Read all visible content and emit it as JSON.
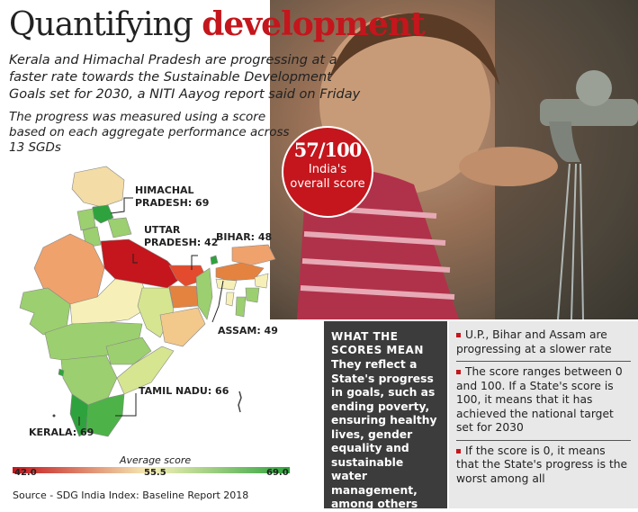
{
  "title": {
    "plain": "Quantifying ",
    "highlight": "development"
  },
  "subtitle": "Kerala and Himachal Pradesh are progressing at a faster rate towards the Sustainable Development Goals set for 2030, a NITI Aayog report said on Friday",
  "subtitle2": "The progress was measured using a score based on each aggregate performance across 13 SGDs",
  "badge": {
    "score": "57/100",
    "label_line1": "India's",
    "label_line2": "overall score"
  },
  "map_labels": {
    "himachal": "HIMACHAL\nPRADESH: 69",
    "uttar": "UTTAR\nPRADESH: 42",
    "bihar": "BIHAR: 48",
    "assam": "ASSAM: 49",
    "tamil": "TAMIL NADU: 66",
    "kerala": "KERALA: 69"
  },
  "legend": {
    "title": "Average score",
    "min": "42.0",
    "mid": "55.5",
    "max": "69.0"
  },
  "source": "Source - SDG India Index: Baseline Report 2018",
  "panel": {
    "heading": "WHAT THE SCORES MEAN",
    "body": "They reflect a State's progress in goals, such as ending poverty, ensuring healthy lives, gender equality and sustainable water management, among others"
  },
  "bullets": [
    "U.P., Bihar and Assam are progressing at a slower rate",
    "The score ranges between 0 and 100. If a State's score is 100, it means that it has achieved the national target set for 2030",
    "If the score is 0, it means that the State's progress is the worst among all"
  ],
  "colors": {
    "accent": "#c4161c",
    "panel_dark": "#3c3c3c",
    "panel_light": "#e8e8e8",
    "low": "#c4161c",
    "high": "#2ea33d"
  }
}
